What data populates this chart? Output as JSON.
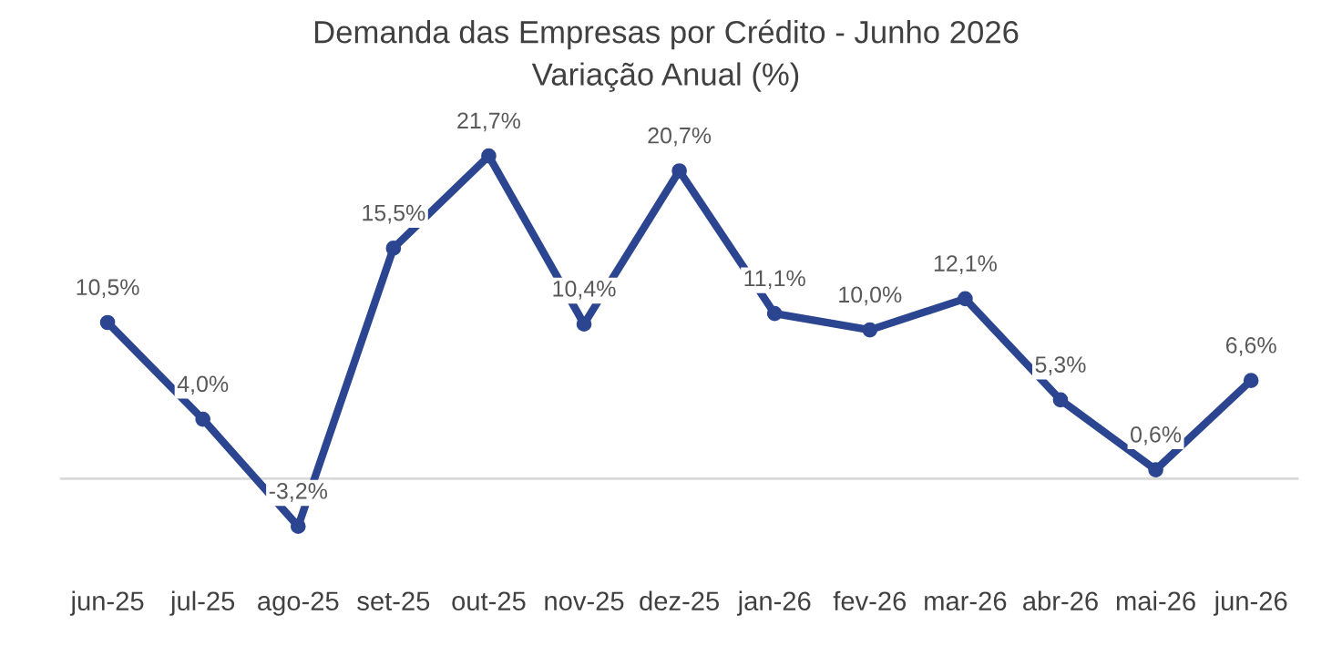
{
  "chart_data": {
    "type": "line",
    "title": "Demanda das Empresas por Crédito - Junho 2026",
    "subtitle": "Variação Anual (%)",
    "categories": [
      "jun-25",
      "jul-25",
      "ago-25",
      "set-25",
      "out-25",
      "nov-25",
      "dez-25",
      "jan-26",
      "fev-26",
      "mar-26",
      "abr-26",
      "mai-26",
      "jun-26"
    ],
    "series": [
      {
        "color": "#2b4590",
        "values": [
          10.5,
          4.0,
          -3.2,
          15.5,
          21.7,
          10.4,
          20.7,
          11.1,
          10.0,
          12.1,
          5.3,
          0.6,
          6.6
        ],
        "value_labels": [
          "10,5%",
          "4,0%",
          "-3,2%",
          "15,5%",
          "21,7%",
          "10,4%",
          "20,7%",
          "11,1%",
          "10,0%",
          "12,1%",
          "5,3%",
          "0,6%",
          "6,6%"
        ]
      }
    ],
    "tick_labels": "x",
    "marker": "circle",
    "line_style": "solid",
    "grid": false,
    "legend": false,
    "ref_lines": [
      {
        "axis": "y",
        "value": 0,
        "color": "#d9d9d9"
      }
    ]
  }
}
